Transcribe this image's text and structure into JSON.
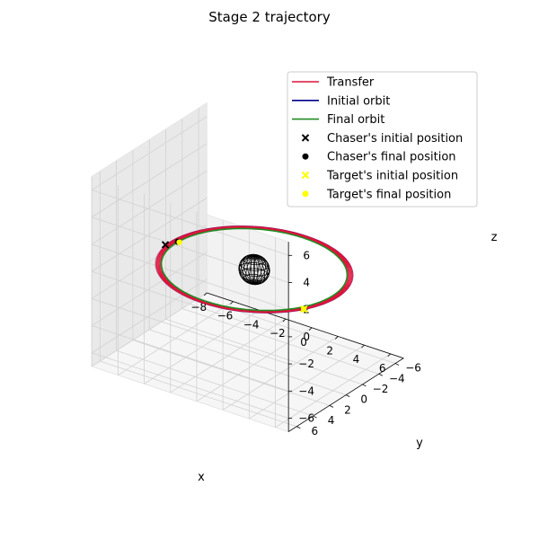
{
  "chart_data": {
    "type": "line",
    "title": "Stage 2 trajectory",
    "xlabel": "x",
    "ylabel": "y",
    "zlabel": "z",
    "x_ticks": [
      -8,
      -6,
      -4,
      -2,
      0,
      2,
      4,
      6
    ],
    "y_ticks": [
      -6,
      -4,
      -2,
      0,
      2,
      4,
      6
    ],
    "z_ticks": [
      -6,
      -4,
      -2,
      0,
      2,
      4,
      6
    ],
    "xlim": [
      -8,
      7
    ],
    "ylim": [
      -7,
      7
    ],
    "zlim": [
      -7,
      7
    ],
    "grid": true,
    "legend_position": "top-right",
    "legend": [
      {
        "label": "Transfer",
        "kind": "line",
        "color": "#dc143c"
      },
      {
        "label": "Initial orbit",
        "kind": "line",
        "color": "#00008b"
      },
      {
        "label": "Final orbit",
        "kind": "line",
        "color": "#228b22"
      },
      {
        "label": "Chaser's initial position",
        "kind": "x",
        "color": "#000000"
      },
      {
        "label": "Chaser's final position",
        "kind": "dot",
        "color": "#000000"
      },
      {
        "label": "Target's initial position",
        "kind": "x",
        "color": "#ffff00"
      },
      {
        "label": "Target's final position",
        "kind": "dot",
        "color": "#ffff00"
      }
    ],
    "series": [
      {
        "name": "Transfer",
        "radius": 6.0,
        "start_radius": 6.4,
        "revolutions": 10
      },
      {
        "name": "Initial orbit",
        "radius": 6.4
      },
      {
        "name": "Final orbit",
        "radius": 6.0
      }
    ],
    "central_body": {
      "radius": 1.0
    },
    "points": {
      "chaser_initial": [
        -6.4,
        0.6,
        0
      ],
      "chaser_final": [
        -6.0,
        -0.3,
        0
      ],
      "target_initial": [
        5.6,
        2.9,
        0
      ],
      "target_final": [
        5.6,
        2.9,
        0
      ]
    }
  }
}
